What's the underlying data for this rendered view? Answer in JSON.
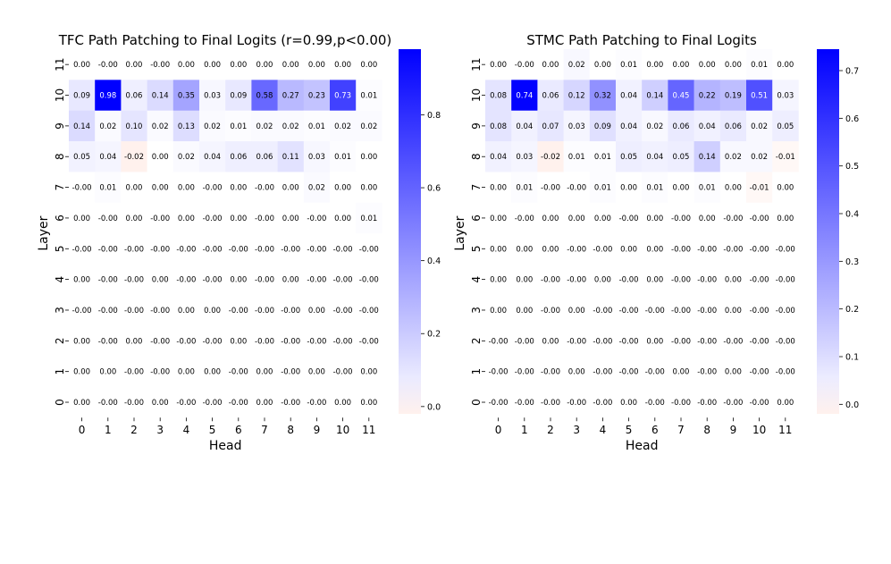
{
  "chart_data": [
    {
      "type": "heatmap",
      "title": "TFC Path Patching to Final Logits (r=0.99,p<0.00)",
      "xlabel": "Head",
      "ylabel": "Layer",
      "x_ticks": [
        "0",
        "1",
        "2",
        "3",
        "4",
        "5",
        "6",
        "7",
        "8",
        "9",
        "10",
        "11"
      ],
      "y_ticks": [
        "11",
        "10",
        "9",
        "8",
        "7",
        "6",
        "5",
        "4",
        "3",
        "2",
        "1",
        "0"
      ],
      "colorbar_ticks": [
        "0.0",
        "0.2",
        "0.4",
        "0.6",
        "0.8"
      ],
      "colorbar_tick_values": [
        0.0,
        0.2,
        0.4,
        0.6,
        0.8
      ],
      "vmin": -0.02,
      "vmax": 0.98,
      "values": [
        [
          0.0,
          -0.0,
          0.0,
          -0.0,
          0.0,
          0.0,
          0.0,
          0.0,
          0.0,
          0.0,
          0.0,
          0.0
        ],
        [
          0.09,
          0.98,
          0.06,
          0.14,
          0.35,
          0.03,
          0.09,
          0.58,
          0.27,
          0.23,
          0.73,
          0.01
        ],
        [
          0.14,
          0.02,
          0.1,
          0.02,
          0.13,
          0.02,
          0.01,
          0.02,
          0.02,
          0.01,
          0.02,
          0.02
        ],
        [
          0.05,
          0.04,
          -0.02,
          0.0,
          0.02,
          0.04,
          0.06,
          0.06,
          0.11,
          0.03,
          0.01,
          0.0
        ],
        [
          -0.0,
          0.01,
          0.0,
          0.0,
          0.0,
          -0.0,
          0.0,
          -0.0,
          0.0,
          0.02,
          0.0,
          0.0
        ],
        [
          0.0,
          -0.0,
          0.0,
          -0.0,
          0.0,
          -0.0,
          0.0,
          -0.0,
          0.0,
          -0.0,
          0.0,
          0.01
        ],
        [
          -0.0,
          -0.0,
          -0.0,
          -0.0,
          -0.0,
          -0.0,
          -0.0,
          -0.0,
          -0.0,
          -0.0,
          -0.0,
          -0.0
        ],
        [
          0.0,
          -0.0,
          -0.0,
          0.0,
          -0.0,
          -0.0,
          0.0,
          -0.0,
          0.0,
          -0.0,
          -0.0,
          -0.0
        ],
        [
          -0.0,
          -0.0,
          -0.0,
          -0.0,
          0.0,
          0.0,
          -0.0,
          -0.0,
          -0.0,
          0.0,
          -0.0,
          -0.0
        ],
        [
          0.0,
          -0.0,
          0.0,
          -0.0,
          -0.0,
          -0.0,
          0.0,
          -0.0,
          -0.0,
          -0.0,
          -0.0,
          -0.0
        ],
        [
          0.0,
          0.0,
          -0.0,
          -0.0,
          0.0,
          0.0,
          -0.0,
          0.0,
          -0.0,
          0.0,
          -0.0,
          0.0
        ],
        [
          0.0,
          -0.0,
          -0.0,
          0.0,
          -0.0,
          -0.0,
          -0.0,
          0.0,
          -0.0,
          -0.0,
          0.0,
          0.0
        ]
      ],
      "labels": [
        [
          "0.00",
          "-0.00",
          "0.00",
          "-0.00",
          "0.00",
          "0.00",
          "0.00",
          "0.00",
          "0.00",
          "0.00",
          "0.00",
          "0.00"
        ],
        [
          "0.09",
          "0.98",
          "0.06",
          "0.14",
          "0.35",
          "0.03",
          "0.09",
          "0.58",
          "0.27",
          "0.23",
          "0.73",
          "0.01"
        ],
        [
          "0.14",
          "0.02",
          "0.10",
          "0.02",
          "0.13",
          "0.02",
          "0.01",
          "0.02",
          "0.02",
          "0.01",
          "0.02",
          "0.02"
        ],
        [
          "0.05",
          "0.04",
          "-0.02",
          "0.00",
          "0.02",
          "0.04",
          "0.06",
          "0.06",
          "0.11",
          "0.03",
          "0.01",
          "0.00"
        ],
        [
          "-0.00",
          "0.01",
          "0.00",
          "0.00",
          "0.00",
          "-0.00",
          "0.00",
          "-0.00",
          "0.00",
          "0.02",
          "0.00",
          "0.00"
        ],
        [
          "0.00",
          "-0.00",
          "0.00",
          "-0.00",
          "0.00",
          "-0.00",
          "0.00",
          "-0.00",
          "0.00",
          "-0.00",
          "0.00",
          "0.01"
        ],
        [
          "-0.00",
          "-0.00",
          "-0.00",
          "-0.00",
          "-0.00",
          "-0.00",
          "-0.00",
          "-0.00",
          "-0.00",
          "-0.00",
          "-0.00",
          "-0.00"
        ],
        [
          "0.00",
          "-0.00",
          "-0.00",
          "0.00",
          "-0.00",
          "-0.00",
          "0.00",
          "-0.00",
          "0.00",
          "-0.00",
          "-0.00",
          "-0.00"
        ],
        [
          "-0.00",
          "-0.00",
          "-0.00",
          "-0.00",
          "0.00",
          "0.00",
          "-0.00",
          "-0.00",
          "-0.00",
          "0.00",
          "-0.00",
          "-0.00"
        ],
        [
          "0.00",
          "-0.00",
          "0.00",
          "-0.00",
          "-0.00",
          "-0.00",
          "0.00",
          "-0.00",
          "-0.00",
          "-0.00",
          "-0.00",
          "-0.00"
        ],
        [
          "0.00",
          "0.00",
          "-0.00",
          "-0.00",
          "0.00",
          "0.00",
          "-0.00",
          "0.00",
          "-0.00",
          "0.00",
          "-0.00",
          "0.00"
        ],
        [
          "0.00",
          "-0.00",
          "-0.00",
          "0.00",
          "-0.00",
          "-0.00",
          "-0.00",
          "0.00",
          "-0.00",
          "-0.00",
          "0.00",
          "0.00"
        ]
      ],
      "colormap": {
        "low": "#ff8a6a",
        "mid": "#ffffff",
        "high": "#0000ff"
      }
    },
    {
      "type": "heatmap",
      "title": "STMC Path Patching to Final Logits",
      "xlabel": "Head",
      "ylabel": "Layer",
      "x_ticks": [
        "0",
        "1",
        "2",
        "3",
        "4",
        "5",
        "6",
        "7",
        "8",
        "9",
        "10",
        "11"
      ],
      "y_ticks": [
        "11",
        "10",
        "9",
        "8",
        "7",
        "6",
        "5",
        "4",
        "3",
        "2",
        "1",
        "0"
      ],
      "colorbar_ticks": [
        "0.0",
        "0.1",
        "0.2",
        "0.3",
        "0.4",
        "0.5",
        "0.6",
        "0.7"
      ],
      "colorbar_tick_values": [
        0.0,
        0.1,
        0.2,
        0.3,
        0.4,
        0.5,
        0.6,
        0.7
      ],
      "vmin": -0.02,
      "vmax": 0.745,
      "values": [
        [
          0.0,
          -0.0,
          0.0,
          0.02,
          0.0,
          0.01,
          0.0,
          0.0,
          0.0,
          0.0,
          0.01,
          0.0
        ],
        [
          0.08,
          0.74,
          0.06,
          0.12,
          0.32,
          0.04,
          0.14,
          0.45,
          0.22,
          0.19,
          0.51,
          0.03
        ],
        [
          0.08,
          0.04,
          0.07,
          0.03,
          0.09,
          0.04,
          0.02,
          0.06,
          0.04,
          0.06,
          0.02,
          0.05
        ],
        [
          0.04,
          0.03,
          -0.02,
          0.01,
          0.01,
          0.05,
          0.04,
          0.05,
          0.14,
          0.02,
          0.02,
          -0.01
        ],
        [
          0.0,
          0.01,
          -0.0,
          -0.0,
          0.01,
          0.0,
          0.01,
          0.0,
          0.01,
          0.0,
          -0.01,
          0.0
        ],
        [
          0.0,
          -0.0,
          0.0,
          0.0,
          0.0,
          -0.0,
          0.0,
          -0.0,
          0.0,
          -0.0,
          -0.0,
          0.0
        ],
        [
          0.0,
          0.0,
          0.0,
          -0.0,
          -0.0,
          0.0,
          0.0,
          -0.0,
          -0.0,
          -0.0,
          -0.0,
          -0.0
        ],
        [
          0.0,
          0.0,
          -0.0,
          -0.0,
          0.0,
          -0.0,
          0.0,
          -0.0,
          -0.0,
          0.0,
          -0.0,
          -0.0
        ],
        [
          0.0,
          0.0,
          -0.0,
          0.0,
          -0.0,
          -0.0,
          -0.0,
          -0.0,
          -0.0,
          0.0,
          -0.0,
          -0.0
        ],
        [
          -0.0,
          -0.0,
          0.0,
          -0.0,
          -0.0,
          -0.0,
          0.0,
          -0.0,
          -0.0,
          -0.0,
          -0.0,
          -0.0
        ],
        [
          -0.0,
          -0.0,
          -0.0,
          0.0,
          -0.0,
          -0.0,
          -0.0,
          0.0,
          -0.0,
          0.0,
          -0.0,
          -0.0
        ],
        [
          -0.0,
          -0.0,
          -0.0,
          -0.0,
          -0.0,
          0.0,
          -0.0,
          -0.0,
          -0.0,
          -0.0,
          -0.0,
          0.0
        ]
      ],
      "labels": [
        [
          "0.00",
          "-0.00",
          "0.00",
          "0.02",
          "0.00",
          "0.01",
          "0.00",
          "0.00",
          "0.00",
          "0.00",
          "0.01",
          "0.00"
        ],
        [
          "0.08",
          "0.74",
          "0.06",
          "0.12",
          "0.32",
          "0.04",
          "0.14",
          "0.45",
          "0.22",
          "0.19",
          "0.51",
          "0.03"
        ],
        [
          "0.08",
          "0.04",
          "0.07",
          "0.03",
          "0.09",
          "0.04",
          "0.02",
          "0.06",
          "0.04",
          "0.06",
          "0.02",
          "0.05"
        ],
        [
          "0.04",
          "0.03",
          "-0.02",
          "0.01",
          "0.01",
          "0.05",
          "0.04",
          "0.05",
          "0.14",
          "0.02",
          "0.02",
          "-0.01"
        ],
        [
          "0.00",
          "0.01",
          "-0.00",
          "-0.00",
          "0.01",
          "0.00",
          "0.01",
          "0.00",
          "0.01",
          "0.00",
          "-0.01",
          "0.00"
        ],
        [
          "0.00",
          "-0.00",
          "0.00",
          "0.00",
          "0.00",
          "-0.00",
          "0.00",
          "-0.00",
          "0.00",
          "-0.00",
          "-0.00",
          "0.00"
        ],
        [
          "0.00",
          "0.00",
          "0.00",
          "-0.00",
          "-0.00",
          "0.00",
          "0.00",
          "-0.00",
          "-0.00",
          "-0.00",
          "-0.00",
          "-0.00"
        ],
        [
          "0.00",
          "0.00",
          "-0.00",
          "-0.00",
          "0.00",
          "-0.00",
          "0.00",
          "-0.00",
          "-0.00",
          "0.00",
          "-0.00",
          "-0.00"
        ],
        [
          "0.00",
          "0.00",
          "-0.00",
          "0.00",
          "-0.00",
          "-0.00",
          "-0.00",
          "-0.00",
          "-0.00",
          "0.00",
          "-0.00",
          "-0.00"
        ],
        [
          "-0.00",
          "-0.00",
          "0.00",
          "-0.00",
          "-0.00",
          "-0.00",
          "0.00",
          "-0.00",
          "-0.00",
          "-0.00",
          "-0.00",
          "-0.00"
        ],
        [
          "-0.00",
          "-0.00",
          "-0.00",
          "0.00",
          "-0.00",
          "-0.00",
          "-0.00",
          "0.00",
          "-0.00",
          "0.00",
          "-0.00",
          "-0.00"
        ],
        [
          "-0.00",
          "-0.00",
          "-0.00",
          "-0.00",
          "-0.00",
          "0.00",
          "-0.00",
          "-0.00",
          "-0.00",
          "-0.00",
          "-0.00",
          "0.00"
        ]
      ],
      "colormap": {
        "low": "#ff8a6a",
        "mid": "#ffffff",
        "high": "#0000ff"
      }
    }
  ]
}
